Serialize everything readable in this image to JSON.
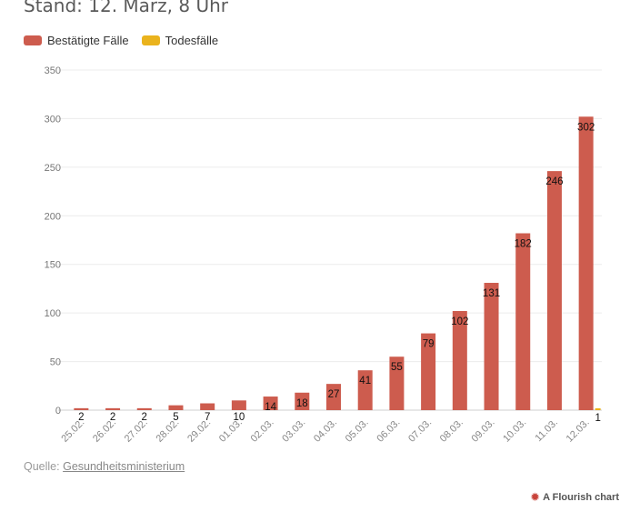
{
  "header": {
    "subtitle": "Stand: 12. März, 8 Uhr"
  },
  "legend": [
    {
      "label": "Bestätigte Fälle",
      "color": "#cd5c4e"
    },
    {
      "label": "Todesfälle",
      "color": "#eab31d"
    }
  ],
  "chart_data": {
    "type": "bar",
    "categories": [
      "25.02.",
      "26.02.",
      "27.02.",
      "28.02.",
      "29.02.",
      "01.03.",
      "02.03.",
      "03.03.",
      "04.03.",
      "05.03.",
      "06.03.",
      "07.03.",
      "08.03.",
      "09.03.",
      "10.03.",
      "11.03.",
      "12.03."
    ],
    "series": [
      {
        "name": "Bestätigte Fälle",
        "color": "#cd5c4e",
        "values": [
          2,
          2,
          2,
          5,
          7,
          10,
          14,
          18,
          27,
          41,
          55,
          79,
          102,
          131,
          182,
          246,
          302
        ]
      },
      {
        "name": "Todesfälle",
        "color": "#eab31d",
        "values": [
          0,
          0,
          0,
          0,
          0,
          0,
          0,
          0,
          0,
          0,
          0,
          0,
          0,
          0,
          0,
          0,
          1
        ]
      }
    ],
    "yticks": [
      0,
      50,
      100,
      150,
      200,
      250,
      300,
      350
    ],
    "ylim": [
      0,
      350
    ],
    "grid": true,
    "legend_position": "top-left"
  },
  "footer": {
    "source_prefix": "Quelle:",
    "source_link": "Gesundheitsministerium",
    "credit": "A Flourish chart"
  }
}
